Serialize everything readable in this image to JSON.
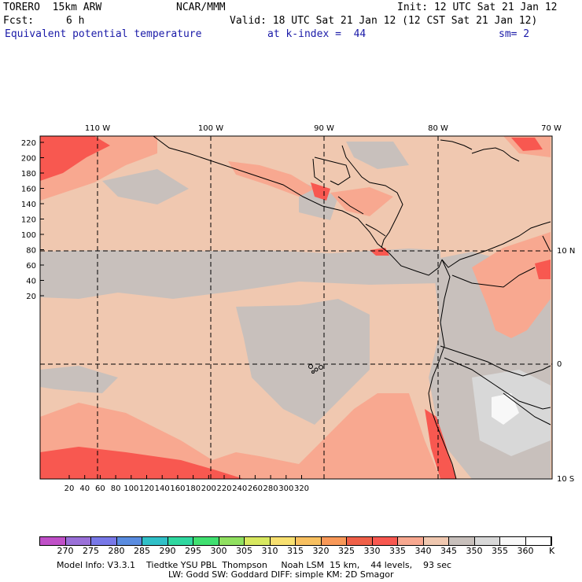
{
  "header": {
    "model": "TORERO  15km ARW",
    "org": "NCAR/MMM",
    "init": "Init: 12 UTC Sat 21 Jan 12",
    "fcst_label": "Fcst:",
    "fcst_value": "6 h",
    "valid": "Valid: 18 UTC Sat 21 Jan 12 (12 CST Sat 21 Jan 12)",
    "field": "Equivalent potential temperature",
    "kindex": "at k-index =  44",
    "smooth": "sm= 2"
  },
  "map": {
    "top_lon_labels": [
      "110 W",
      "100 W",
      "90 W",
      "80 W",
      "70 W"
    ],
    "right_lat_labels": [
      "10 N",
      "0",
      "10 S"
    ],
    "left_ticks": [
      "220",
      "200",
      "180",
      "160",
      "140",
      "120",
      "100",
      "80",
      "60",
      "40",
      "20"
    ],
    "bottom_ticks": [
      "20",
      "40",
      "60",
      "80",
      "100",
      "120",
      "140",
      "160",
      "180",
      "200",
      "220",
      "240",
      "260",
      "280",
      "300",
      "320"
    ]
  },
  "colorbar": {
    "unit": "K",
    "levels": [
      "270",
      "275",
      "280",
      "285",
      "290",
      "295",
      "300",
      "305",
      "310",
      "315",
      "320",
      "325",
      "330",
      "335",
      "340",
      "345",
      "350",
      "355",
      "360"
    ],
    "colors": [
      "#c050c8",
      "#9a70d8",
      "#7878e8",
      "#5a8ce0",
      "#30c0c8",
      "#30d8a0",
      "#40e070",
      "#90e060",
      "#d8e860",
      "#f8e070",
      "#f8c060",
      "#f89858",
      "#f06048",
      "#f85850",
      "#f8a890",
      "#f0c8b0",
      "#c8c0bc",
      "#d8d8d8",
      "#f8f8f8",
      "#ffffff"
    ]
  },
  "footer": {
    "line1": "Model Info: V3.3.1    Tiedtke YSU PBL  Thompson     Noah LSM  15 km,    44 levels,    93 sec",
    "line2": "LW: Godd SW: Goddard DIFF: simple KM: 2D Smagor"
  }
}
